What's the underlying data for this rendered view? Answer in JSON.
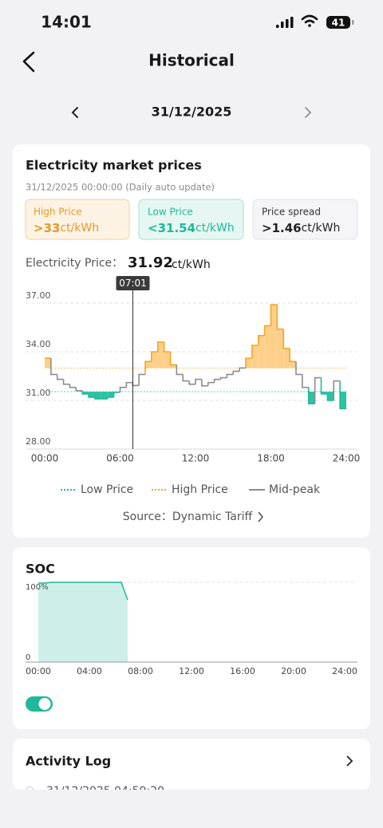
{
  "status": {
    "time": "14:01",
    "battery": "41"
  },
  "header": {
    "title": "Historical"
  },
  "date_nav": {
    "date": "31/12/2025"
  },
  "price_card": {
    "title": "Electricity market prices",
    "subtitle": "31/12/2025 00:00:00 (Daily auto update)",
    "high": {
      "label": "High Price",
      "prefix": ">",
      "value": 33,
      "unit": "ct/kWh"
    },
    "low": {
      "label": "Low Price",
      "prefix": "<",
      "value": 31.54,
      "unit": "ct/kWh"
    },
    "spread": {
      "label": "Price spread",
      "prefix": ">",
      "value": 1.46,
      "unit": "ct/kWh"
    },
    "readout": {
      "label": "Electricity Price：",
      "value": 31.92,
      "unit": "ct/kWh"
    },
    "source": "Source：Dynamic Tariff"
  },
  "chart_data": [
    {
      "type": "step",
      "x": [
        0,
        0.5,
        1,
        1.5,
        2,
        2.5,
        3,
        3.5,
        4,
        4.5,
        5,
        5.5,
        6,
        6.5,
        7,
        7.5,
        8,
        8.5,
        9,
        9.5,
        10,
        10.5,
        11,
        11.5,
        12,
        12.5,
        13,
        13.5,
        14,
        14.5,
        15,
        15.5,
        16,
        16.5,
        17,
        17.5,
        18,
        18.5,
        19,
        19.5,
        20,
        20.5,
        21,
        21.5,
        22,
        22.5,
        23,
        23.5
      ],
      "values": [
        33.6,
        32.6,
        32.3,
        32.0,
        31.8,
        31.6,
        31.4,
        31.2,
        31.1,
        31.1,
        31.2,
        31.5,
        31.8,
        32.1,
        31.92,
        32.6,
        33.4,
        34.0,
        34.6,
        34.0,
        33.2,
        32.6,
        32.2,
        32.0,
        32.3,
        31.9,
        32.1,
        32.3,
        32.4,
        32.6,
        32.8,
        33.0,
        33.6,
        34.4,
        35.0,
        35.6,
        36.9,
        35.4,
        34.2,
        33.4,
        32.6,
        31.8,
        30.8,
        32.4,
        31.4,
        31.0,
        32.2,
        30.5
      ],
      "xlim": [
        0,
        24
      ],
      "xticks": [
        {
          "value": 0,
          "label": "00:00"
        },
        {
          "value": 6,
          "label": "06:00"
        },
        {
          "value": 12,
          "label": "12:00"
        },
        {
          "value": 18,
          "label": "18:00"
        },
        {
          "value": 24,
          "label": "24:00"
        }
      ],
      "ylim": [
        28,
        37
      ],
      "yticks": [
        {
          "value": 28,
          "label": "28.00"
        },
        {
          "value": 31,
          "label": "31.00"
        },
        {
          "value": 34,
          "label": "34.00"
        },
        {
          "value": 37,
          "label": "37.00"
        }
      ],
      "grid": true,
      "legend": [
        {
          "name": "Low Price",
          "color": "#1fb89a"
        },
        {
          "name": "High Price",
          "color": "#f5a623"
        },
        {
          "name": "Mid-peak",
          "color": "#8c8c8c"
        }
      ],
      "cursor": {
        "label": "07:01"
      }
    },
    {
      "type": "area",
      "title": "SOC",
      "x": [
        0,
        0.5,
        1,
        2,
        3,
        4,
        5,
        6,
        6.5,
        7
      ],
      "values": [
        99,
        99,
        100,
        100,
        100,
        100,
        100,
        100,
        100,
        78
      ],
      "xlim": [
        0,
        24
      ],
      "xticks": [
        {
          "value": 0,
          "label": "00:00"
        },
        {
          "value": 4,
          "label": "04:00"
        },
        {
          "value": 8,
          "label": "08:00"
        },
        {
          "value": 12,
          "label": "12:00"
        },
        {
          "value": 16,
          "label": "16:00"
        },
        {
          "value": 20,
          "label": "20:00"
        },
        {
          "value": 24,
          "label": "24:00"
        }
      ],
      "ylim": [
        0,
        100
      ],
      "yticks": [
        0,
        {
          "value": 100,
          "label": "100%"
        }
      ],
      "grid": true,
      "color": "#1fb89a"
    }
  ],
  "activity": {
    "title": "Activity Log",
    "entries": [
      "31/12/2025 04:59:20"
    ]
  }
}
